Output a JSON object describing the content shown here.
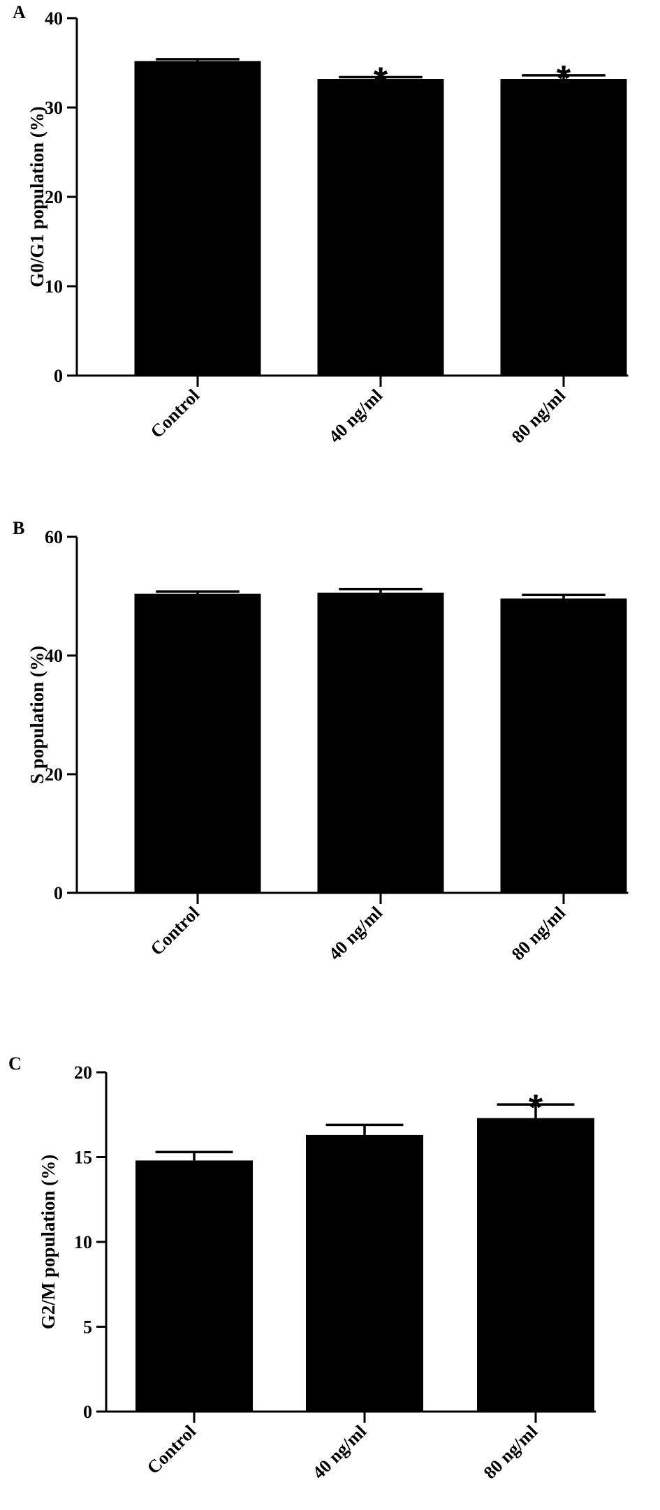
{
  "chart_data": [
    {
      "type": "bar",
      "panel_label": "A",
      "ylabel": "G0/G1 population (%)",
      "categories": [
        "Control",
        "40 ng/ml",
        "80 ng/ml"
      ],
      "values": [
        35.2,
        33.2,
        33.2
      ],
      "errors": [
        0.2,
        0.2,
        0.4
      ],
      "significance": [
        "",
        "*",
        "*"
      ],
      "yticks": [
        "0",
        "10",
        "20",
        "30",
        "40"
      ],
      "ylim": [
        0,
        40
      ],
      "grid": false,
      "color": "#000000"
    },
    {
      "type": "bar",
      "panel_label": "B",
      "ylabel": "S population (%)",
      "categories": [
        "Control",
        "40 ng/ml",
        "80 ng/ml"
      ],
      "values": [
        50.4,
        50.6,
        49.6
      ],
      "errors": [
        0.4,
        0.6,
        0.6
      ],
      "significance": [
        "",
        "",
        ""
      ],
      "yticks": [
        "0",
        "20",
        "40",
        "60"
      ],
      "ylim": [
        0,
        60
      ],
      "grid": false,
      "color": "#000000"
    },
    {
      "type": "bar",
      "panel_label": "C",
      "ylabel": "G2/M population (%)",
      "categories": [
        "Control",
        "40 ng/ml",
        "80 ng/ml"
      ],
      "values": [
        14.8,
        16.3,
        17.3
      ],
      "errors": [
        0.5,
        0.6,
        0.8
      ],
      "significance": [
        "",
        "",
        "*"
      ],
      "yticks": [
        "0",
        "5",
        "10",
        "15",
        "20"
      ],
      "ylim": [
        0,
        20
      ],
      "grid": false,
      "color": "#000000"
    }
  ]
}
